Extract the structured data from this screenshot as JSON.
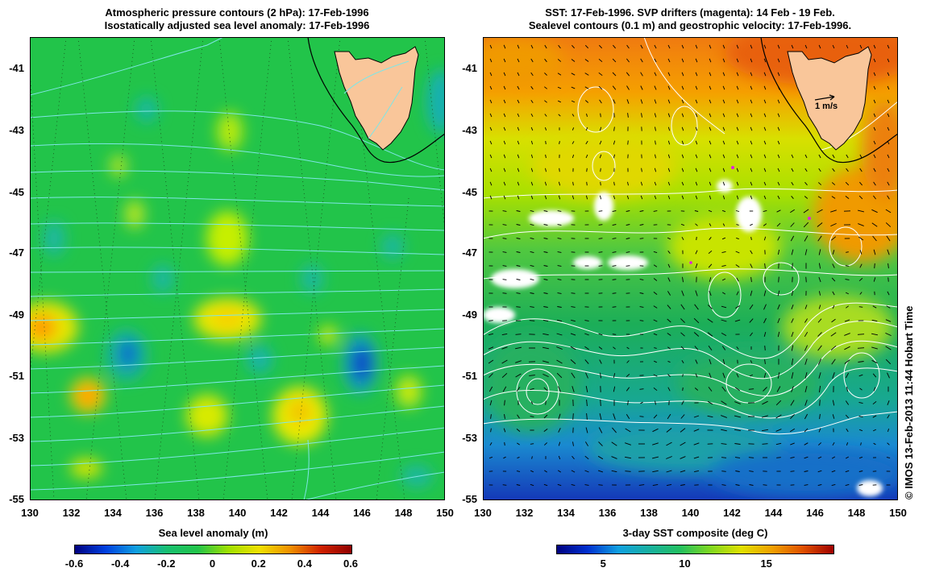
{
  "left_panel": {
    "title_line1": "Atmospheric pressure contours (2 hPa): 17-Feb-1996",
    "title_line2": "Isostatically adjusted sea level anomaly: 17-Feb-1996",
    "colorbar_title": "Sea level anomaly (m)",
    "colorbar_ticks": [
      "-0.6",
      "-0.4",
      "-0.2",
      "0",
      "0.2",
      "0.4",
      "0.6"
    ],
    "colors": {
      "ocean": "#22c44a",
      "land": "#f9c69a",
      "contour": "#7fe6e6"
    }
  },
  "right_panel": {
    "title_line1": "SST: 17-Feb-1996. SVP drifters (magenta): 14 Feb - 19 Feb.",
    "title_line2": "Sealevel contours (0.1 m) and geostrophic velocity: 17-Feb-1996.",
    "colorbar_title": "3-day SST composite (deg C)",
    "colorbar_ticks": [
      "5",
      "10",
      "15"
    ],
    "velocity_scale_label": "1 m/s",
    "colors": {
      "land": "#f9c69a",
      "contour": "#ffffff",
      "vectors": "#000000"
    }
  },
  "axes": {
    "y_ticks": [
      "-41",
      "-43",
      "-45",
      "-47",
      "-49",
      "-51",
      "-53",
      "-55"
    ],
    "x_ticks": [
      "130",
      "132",
      "134",
      "136",
      "138",
      "140",
      "142",
      "144",
      "146",
      "148",
      "150"
    ]
  },
  "credit": "© IMOS 13-Feb-2013 11:44 Hobart Time"
}
